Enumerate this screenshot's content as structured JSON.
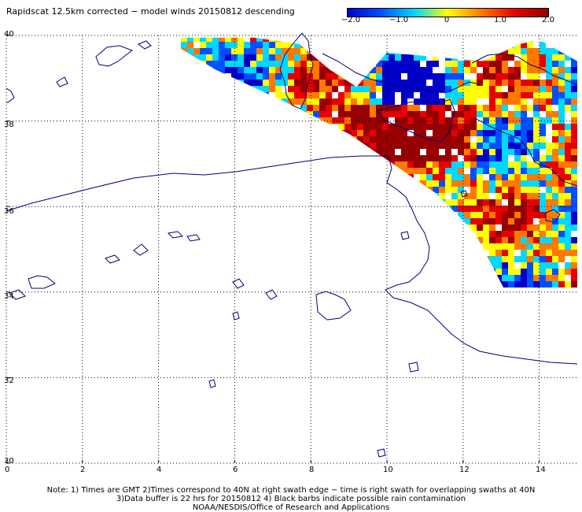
{
  "title": "Rapidscat 12.5km corrected − model winds 20150812 descending",
  "colorbar": {
    "labels": [
      "−2.0",
      "−1.0",
      "0",
      "1.0",
      "2.0"
    ],
    "values": [
      -2.0,
      -1.0,
      0,
      1.0,
      2.0
    ],
    "colors": [
      "#0000c8",
      "#0050ff",
      "#00d8ff",
      "#ffff00",
      "#ff7800",
      "#e60000",
      "#960000"
    ]
  },
  "x_axis": {
    "ticks": [
      "0",
      "2",
      "4",
      "6",
      "8",
      "10",
      "12",
      "14"
    ],
    "values": [
      0,
      2,
      4,
      6,
      8,
      10,
      12,
      14
    ],
    "range": [
      0,
      15
    ]
  },
  "y_axis": {
    "ticks": [
      "30",
      "32",
      "34",
      "36",
      "38",
      "40"
    ],
    "values": [
      30,
      32,
      34,
      36,
      38,
      40
    ],
    "range": [
      30,
      40
    ]
  },
  "notes": [
    "Note: 1) Times are GMT 2)Times correspond to 40N at right swath edge − time is right swath for overlapping swaths at 40N",
    "3)Data buffer is 22 hrs for 20150812 4) Black barbs indicate possible rain contamination",
    "NOAA/NESDIS/Office of Research and Applications"
  ],
  "swath_outline_lonlat": [
    [
      4.1,
      39.95
    ],
    [
      5.0,
      39.95
    ],
    [
      6.5,
      39.95
    ],
    [
      7.7,
      39.8
    ],
    [
      8.5,
      39.2
    ],
    [
      9.2,
      38.8
    ],
    [
      10.0,
      39.6
    ],
    [
      12.5,
      39.4
    ],
    [
      13.5,
      39.8
    ],
    [
      14.0,
      39.9
    ],
    [
      15.0,
      39.4
    ],
    [
      15.0,
      33.2
    ],
    [
      13.3,
      33.7
    ],
    [
      12.3,
      35.4
    ],
    [
      11.3,
      36.3
    ],
    [
      9.0,
      37.7
    ],
    [
      7.2,
      38.5
    ],
    [
      5.5,
      39.2
    ],
    [
      4.1,
      39.95
    ]
  ]
}
